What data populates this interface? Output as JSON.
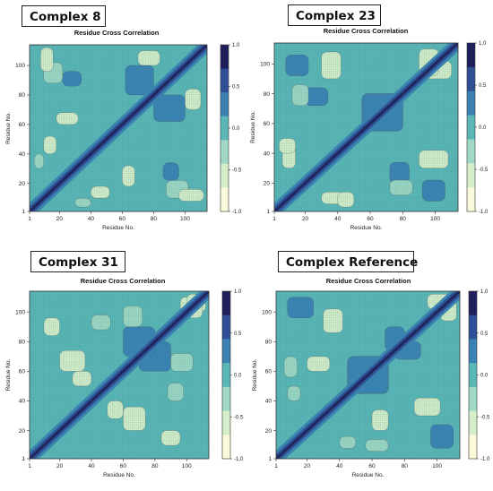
{
  "chart_data": [
    {
      "type": "heatmap",
      "label": "Complex 8",
      "title": "Residue Cross Correlation",
      "xlabel": "Residue No.",
      "ylabel": "Residue No.",
      "xlim": [
        1,
        114
      ],
      "ylim": [
        1,
        114
      ],
      "xticks": [
        1,
        20,
        40,
        60,
        80,
        100
      ],
      "yticks": [
        1,
        20,
        40,
        60,
        80,
        100
      ],
      "colorbar_ticks": [
        1.0,
        0.5,
        0.0,
        -0.5,
        -1.0
      ],
      "colorbar_tick_labels": [
        "1.0",
        "0.5",
        "0.0",
        "-0.5",
        "-1.0"
      ],
      "clim": [
        -1.0,
        1.0
      ],
      "grid": true
    },
    {
      "type": "heatmap",
      "label": "Complex 23",
      "title": "Residue Cross Correlation",
      "xlabel": "Residue No.",
      "ylabel": "Residue No.",
      "xlim": [
        1,
        114
      ],
      "ylim": [
        1,
        114
      ],
      "xticks": [
        1,
        20,
        40,
        60,
        80,
        100
      ],
      "yticks": [
        1,
        20,
        40,
        60,
        80,
        100
      ],
      "colorbar_ticks": [
        1.0,
        0.5,
        0.0,
        -0.5,
        -1.0
      ],
      "colorbar_tick_labels": [
        "1.0",
        "0.5",
        "0.0",
        "-0.5",
        "-1.0"
      ],
      "clim": [
        -1.0,
        1.0
      ],
      "grid": true
    },
    {
      "type": "heatmap",
      "label": "Complex 31",
      "title": "Residue Cross Correlation",
      "xlabel": "Residue No.",
      "ylabel": "Residue No.",
      "xlim": [
        1,
        114
      ],
      "ylim": [
        1,
        114
      ],
      "xticks": [
        1,
        20,
        40,
        60,
        80,
        100
      ],
      "yticks": [
        1,
        20,
        40,
        60,
        80,
        100
      ],
      "colorbar_ticks": [
        1.0,
        0.5,
        0.0,
        -0.5,
        -1.0
      ],
      "colorbar_tick_labels": [
        "1.0",
        "0.5",
        "0.0",
        "-0.5",
        "-1.0"
      ],
      "clim": [
        -1.0,
        1.0
      ],
      "grid": true
    },
    {
      "type": "heatmap",
      "label": "Complex Reference",
      "title": "Residue Cross Correlation",
      "xlabel": "Residue No.",
      "ylabel": "Residue No.",
      "xlim": [
        1,
        114
      ],
      "ylim": [
        1,
        114
      ],
      "xticks": [
        1,
        20,
        40,
        60,
        80,
        100
      ],
      "yticks": [
        1,
        20,
        40,
        60,
        80,
        100
      ],
      "colorbar_ticks": [
        1.0,
        0.5,
        0.0,
        -0.5,
        -1.0
      ],
      "colorbar_tick_labels": [
        "1.0",
        "0.5",
        "0.0",
        "-0.5",
        "-1.0"
      ],
      "clim": [
        -1.0,
        1.0
      ],
      "grid": true
    }
  ],
  "colors": {
    "level_1": "#1f1f5c",
    "level_2": "#2f4f97",
    "level_3": "#3b82b4",
    "level_4": "#5bb6b6",
    "level_5": "#9fd8c4",
    "level_6": "#d5eec9",
    "level_7": "#fbfbdb",
    "background": "#5bb6b6"
  }
}
